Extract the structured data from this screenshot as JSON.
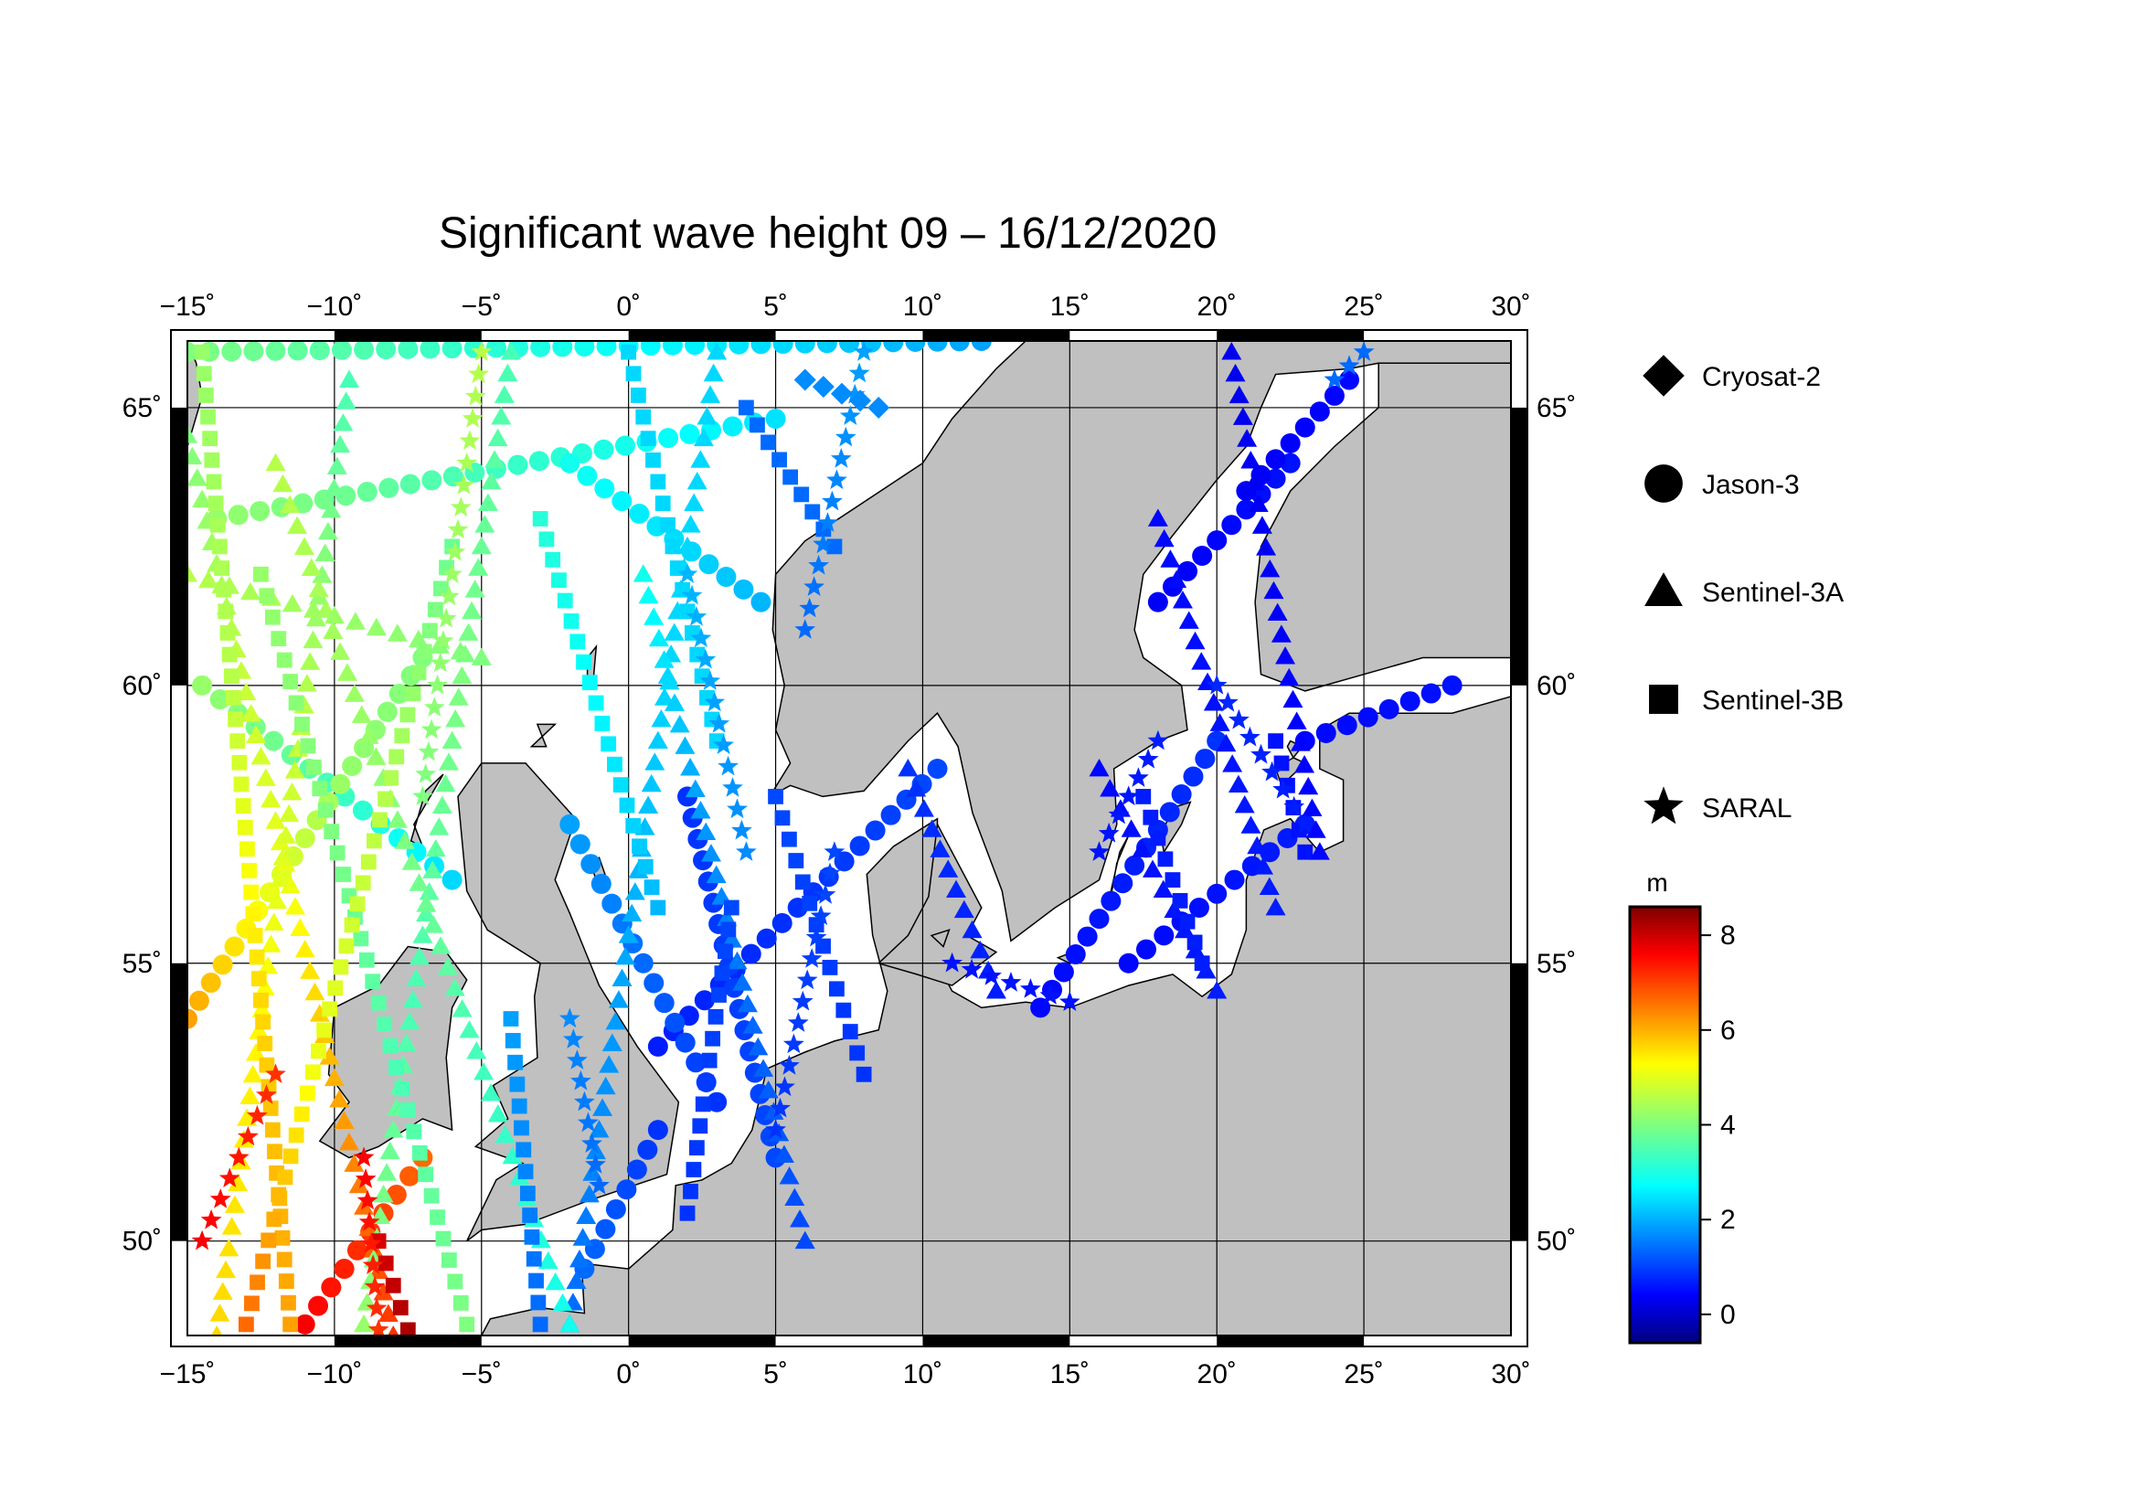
{
  "title": "Significant wave height 09 – 16/12/2020",
  "map": {
    "lon_range": [
      -15,
      30
    ],
    "lat_range": [
      48.3,
      66.2
    ],
    "graticule_step": 5,
    "lon_ticks": [
      {
        "value": -15,
        "label": "−15˚"
      },
      {
        "value": -10,
        "label": "−10˚"
      },
      {
        "value": -5,
        "label": "−5˚"
      },
      {
        "value": 0,
        "label": "0˚"
      },
      {
        "value": 5,
        "label": "5˚"
      },
      {
        "value": 10,
        "label": "10˚"
      },
      {
        "value": 15,
        "label": "15˚"
      },
      {
        "value": 20,
        "label": "20˚"
      },
      {
        "value": 25,
        "label": "25˚"
      },
      {
        "value": 30,
        "label": "30˚"
      }
    ],
    "lat_ticks": [
      {
        "value": 50,
        "label": "50˚"
      },
      {
        "value": 55,
        "label": "55˚"
      },
      {
        "value": 60,
        "label": "60˚"
      },
      {
        "value": 65,
        "label": "65˚"
      }
    ],
    "land_color": "#c0c0c0",
    "ocean_color": "#ffffff",
    "grid": true
  },
  "legend": {
    "items": [
      {
        "label": "Cryosat-2",
        "symbol": "diamond-icon"
      },
      {
        "label": "Jason-3",
        "symbol": "circle-icon"
      },
      {
        "label": "Sentinel-3A",
        "symbol": "triangle-icon"
      },
      {
        "label": "Sentinel-3B",
        "symbol": "square-icon"
      },
      {
        "label": "SARAL",
        "symbol": "star-icon"
      }
    ]
  },
  "colorbar": {
    "unit": "m",
    "range": [
      -0.6,
      8.6
    ],
    "ticks": [
      {
        "value": 0,
        "label": "0"
      },
      {
        "value": 2,
        "label": "2"
      },
      {
        "value": 4,
        "label": "4"
      },
      {
        "value": 6,
        "label": "6"
      },
      {
        "value": 8,
        "label": "8"
      }
    ],
    "colormap": "jet"
  },
  "chart_data": {
    "type": "scatter",
    "title": "Significant wave height 09 – 16/12/2020",
    "xlabel": "",
    "ylabel": "",
    "xlim": [
      -15,
      30
    ],
    "ylim": [
      48.3,
      66.2
    ],
    "color_variable": "significant wave height (m)",
    "series": [
      {
        "name": "Jason-3",
        "marker": "circle",
        "tracks": [
          {
            "start": [
              -15.0,
              66.0
            ],
            "end": [
              12.0,
              66.2
            ],
            "values": [
              4.0,
              3.5,
              3.0,
              2.5,
              2.0
            ]
          },
          {
            "start": [
              -14.0,
              63.0
            ],
            "end": [
              5.0,
              64.8
            ],
            "values": [
              4.2,
              3.8,
              3.4,
              3.0,
              2.6
            ]
          },
          {
            "start": [
              -14.5,
              60.0
            ],
            "end": [
              -6.0,
              56.5
            ],
            "values": [
              4.2,
              3.8,
              3.2,
              2.5
            ]
          },
          {
            "start": [
              -15.0,
              54.0
            ],
            "end": [
              -7.0,
              60.5
            ],
            "values": [
              6.0,
              5.0,
              4.2,
              4.0
            ]
          },
          {
            "start": [
              -11.0,
              48.5
            ],
            "end": [
              -7.0,
              51.5
            ],
            "values": [
              7.5,
              7.0,
              6.5
            ]
          },
          {
            "start": [
              -2.0,
              64.0
            ],
            "end": [
              4.5,
              61.5
            ],
            "values": [
              3.0,
              2.6,
              2.2
            ]
          },
          {
            "start": [
              1.0,
              53.5
            ],
            "end": [
              10.5,
              58.5
            ],
            "values": [
              0.8,
              1.0,
              1.2
            ]
          },
          {
            "start": [
              1.0,
              52.0
            ],
            "end": [
              -1.5,
              49.5
            ],
            "values": [
              1.0,
              1.5
            ]
          },
          {
            "start": [
              3.0,
              52.5
            ],
            "end": [
              -2.0,
              57.5
            ],
            "values": [
              1.0,
              1.5,
              2.0
            ]
          },
          {
            "start": [
              2.0,
              58.0
            ],
            "end": [
              5.0,
              51.5
            ],
            "values": [
              1.0,
              1.2
            ]
          },
          {
            "start": [
              14.0,
              54.2
            ],
            "end": [
              20.0,
              59.0
            ],
            "values": [
              0.6,
              0.8,
              1.0
            ]
          },
          {
            "start": [
              17.0,
              55.0
            ],
            "end": [
              23.0,
              57.5
            ],
            "values": [
              0.6,
              0.8
            ]
          },
          {
            "start": [
              23.0,
              59.0
            ],
            "end": [
              28.0,
              60.0
            ],
            "values": [
              0.6,
              0.7
            ]
          },
          {
            "start": [
              18.0,
              61.5
            ],
            "end": [
              22.5,
              64.0
            ],
            "values": [
              0.5,
              0.7
            ]
          },
          {
            "start": [
              21.0,
              63.5
            ],
            "end": [
              24.5,
              65.5
            ],
            "values": [
              0.5,
              0.6
            ]
          }
        ]
      },
      {
        "name": "Sentinel-3A",
        "marker": "triangle",
        "tracks": [
          {
            "start": [
              -15.0,
              64.5
            ],
            "end": [
              -8.0,
              48.3
            ],
            "values": [
              4.0,
              4.6,
              5.0,
              6.0,
              7.0
            ]
          },
          {
            "start": [
              -9.5,
              65.5
            ],
            "end": [
              -14.0,
              48.3
            ],
            "values": [
              3.5,
              4.5,
              5.2,
              5.5
            ]
          },
          {
            "start": [
              -4.0,
              66.0
            ],
            "end": [
              -9.0,
              48.5
            ],
            "values": [
              3.5,
              4.0,
              3.5,
              4.2
            ]
          },
          {
            "start": [
              3.0,
              66.0
            ],
            "end": [
              -2.0,
              48.5
            ],
            "values": [
              2.5,
              2.5,
              2.0,
              1.5
            ]
          },
          {
            "start": [
              -12.0,
              64.0
            ],
            "end": [
              -2.0,
              48.5
            ],
            "values": [
              4.5,
              4.2,
              3.5,
              3.0
            ]
          },
          {
            "start": [
              0.5,
              62.0
            ],
            "end": [
              6.0,
              50.0
            ],
            "values": [
              3.0,
              2.0,
              1.5,
              1.2
            ]
          },
          {
            "start": [
              9.5,
              58.5
            ],
            "end": [
              12.5,
              54.5
            ],
            "values": [
              1.0,
              0.8
            ]
          },
          {
            "start": [
              16.0,
              58.5
            ],
            "end": [
              20.0,
              54.5
            ],
            "values": [
              0.6,
              0.8
            ]
          },
          {
            "start": [
              18.0,
              63.0
            ],
            "end": [
              22.0,
              56.0
            ],
            "values": [
              0.6,
              0.8
            ]
          },
          {
            "start": [
              20.5,
              66.0
            ],
            "end": [
              23.5,
              57.0
            ],
            "values": [
              0.4,
              0.6
            ]
          },
          {
            "start": [
              -15.0,
              62.0
            ],
            "end": [
              -5.0,
              60.5
            ],
            "values": [
              4.5,
              4.0
            ]
          }
        ]
      },
      {
        "name": "Sentinel-3B",
        "marker": "square",
        "tracks": [
          {
            "start": [
              -14.5,
              66.0
            ],
            "end": [
              -11.5,
              48.5
            ],
            "values": [
              4.2,
              4.5,
              5.5,
              6.0
            ]
          },
          {
            "start": [
              -12.5,
              62.0
            ],
            "end": [
              -5.5,
              48.5
            ],
            "values": [
              4.2,
              4.0,
              3.5,
              4.0
            ]
          },
          {
            "start": [
              -6.0,
              62.5
            ],
            "end": [
              -13.0,
              48.5
            ],
            "values": [
              3.8,
              4.5,
              5.0,
              6.5
            ]
          },
          {
            "start": [
              -3.0,
              63.0
            ],
            "end": [
              1.0,
              56.0
            ],
            "values": [
              3.2,
              2.8,
              2.2
            ]
          },
          {
            "start": [
              0.0,
              66.0
            ],
            "end": [
              3.0,
              59.0
            ],
            "values": [
              2.5,
              2.5
            ]
          },
          {
            "start": [
              4.0,
              65.0
            ],
            "end": [
              7.0,
              62.5
            ],
            "values": [
              1.5,
              1.5
            ]
          },
          {
            "start": [
              5.0,
              58.0
            ],
            "end": [
              8.0,
              53.0
            ],
            "values": [
              1.2,
              1.0
            ]
          },
          {
            "start": [
              3.5,
              56.0
            ],
            "end": [
              2.0,
              50.5
            ],
            "values": [
              1.2,
              1.0
            ]
          },
          {
            "start": [
              17.5,
              58.0
            ],
            "end": [
              19.5,
              55.0
            ],
            "values": [
              0.8,
              0.8
            ]
          },
          {
            "start": [
              22.0,
              59.0
            ],
            "end": [
              23.0,
              57.0
            ],
            "values": [
              0.7,
              0.7
            ]
          },
          {
            "start": [
              -8.5,
              50.0
            ],
            "end": [
              -7.5,
              48.4
            ],
            "values": [
              7.8,
              8.2
            ]
          },
          {
            "start": [
              -4.0,
              54.0
            ],
            "end": [
              -3.0,
              48.5
            ],
            "values": [
              2.0,
              1.5
            ]
          }
        ]
      },
      {
        "name": "SARAL",
        "marker": "star",
        "tracks": [
          {
            "start": [
              -12.0,
              53.0
            ],
            "end": [
              -14.5,
              50.0
            ],
            "values": [
              7.0,
              7.5
            ]
          },
          {
            "start": [
              -9.0,
              51.5
            ],
            "end": [
              -8.5,
              48.4
            ],
            "values": [
              7.5,
              7.0
            ]
          },
          {
            "start": [
              -5.0,
              66.0
            ],
            "end": [
              -7.0,
              58.0
            ],
            "values": [
              4.5,
              4.0
            ]
          },
          {
            "start": [
              2.0,
              62.0
            ],
            "end": [
              4.0,
              57.0
            ],
            "values": [
              2.2,
              1.8
            ]
          },
          {
            "start": [
              7.0,
              57.0
            ],
            "end": [
              5.0,
              52.0
            ],
            "values": [
              1.2,
              1.0
            ]
          },
          {
            "start": [
              8.0,
              66.0
            ],
            "end": [
              6.0,
              61.0
            ],
            "values": [
              2.0,
              1.5
            ]
          },
          {
            "start": [
              11.0,
              55.0
            ],
            "end": [
              15.0,
              54.3
            ],
            "values": [
              0.7,
              0.7
            ]
          },
          {
            "start": [
              16.0,
              57.0
            ],
            "end": [
              18.0,
              59.0
            ],
            "values": [
              0.7,
              0.8
            ]
          },
          {
            "start": [
              20.0,
              60.0
            ],
            "end": [
              23.0,
              57.5
            ],
            "values": [
              0.9,
              0.8
            ]
          },
          {
            "start": [
              24.0,
              65.5
            ],
            "end": [
              25.0,
              66.0
            ],
            "values": [
              1.5,
              1.5
            ]
          },
          {
            "start": [
              -2.0,
              54.0
            ],
            "end": [
              -1.0,
              51.0
            ],
            "values": [
              1.8,
              1.5
            ]
          }
        ]
      },
      {
        "name": "Cryosat-2",
        "marker": "diamond",
        "tracks": [
          {
            "start": [
              6.0,
              65.5
            ],
            "end": [
              8.5,
              65.0
            ],
            "values": [
              1.8,
              1.8
            ]
          }
        ]
      }
    ]
  }
}
